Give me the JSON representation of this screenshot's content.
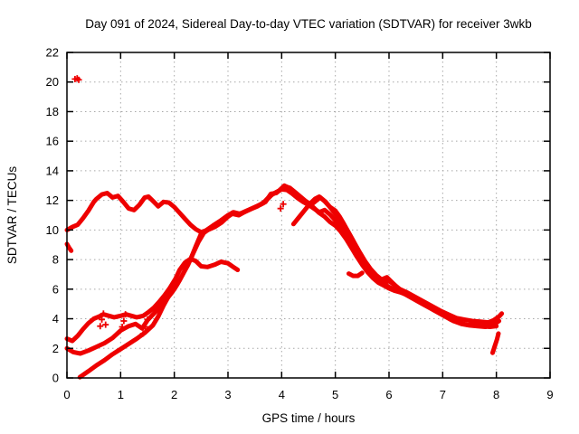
{
  "chart_data": {
    "type": "scatter",
    "title": "Day 091 of 2024, Sidereal Day-to-day VTEC variation (SDTVAR) for receiver 3wkb",
    "xlabel": "GPS time / hours",
    "ylabel": "SDTVAR / TECUs",
    "xlim": [
      0,
      9
    ],
    "ylim": [
      0,
      22
    ],
    "xticks": [
      0,
      1,
      2,
      3,
      4,
      5,
      6,
      7,
      8,
      9
    ],
    "yticks": [
      0,
      2,
      4,
      6,
      8,
      10,
      12,
      14,
      16,
      18,
      20,
      22
    ],
    "grid": true,
    "legend_position": "none",
    "marker": "plus",
    "color": "#ee0000",
    "grid_color": "#a8a8a8",
    "border_color": "#000000",
    "series": [
      {
        "name": "main-trace",
        "style": "line",
        "points": [
          [
            0,
            10.0
          ],
          [
            0.1,
            10.2
          ],
          [
            0.2,
            10.35
          ],
          [
            0.3,
            10.8
          ],
          [
            0.4,
            11.3
          ],
          [
            0.5,
            11.9
          ],
          [
            0.55,
            12.1
          ],
          [
            0.65,
            12.4
          ],
          [
            0.75,
            12.5
          ],
          [
            0.85,
            12.2
          ],
          [
            0.95,
            12.3
          ],
          [
            1.05,
            11.9
          ],
          [
            1.15,
            11.45
          ],
          [
            1.25,
            11.35
          ],
          [
            1.35,
            11.7
          ],
          [
            1.45,
            12.2
          ],
          [
            1.52,
            12.25
          ],
          [
            1.62,
            11.9
          ],
          [
            1.7,
            11.6
          ],
          [
            1.8,
            11.9
          ],
          [
            1.9,
            11.85
          ],
          [
            2.0,
            11.55
          ],
          [
            2.1,
            11.15
          ],
          [
            2.2,
            10.75
          ],
          [
            2.3,
            10.35
          ],
          [
            2.4,
            10.05
          ],
          [
            2.5,
            9.85
          ],
          [
            2.62,
            10.0
          ],
          [
            2.75,
            10.2
          ],
          [
            2.88,
            10.5
          ],
          [
            3.0,
            10.9
          ],
          [
            3.1,
            11.15
          ],
          [
            3.2,
            11.05
          ],
          [
            3.3,
            11.2
          ],
          [
            3.45,
            11.45
          ],
          [
            3.6,
            11.7
          ],
          [
            3.7,
            11.9
          ],
          [
            3.8,
            12.45
          ],
          [
            3.9,
            12.5
          ],
          [
            4.0,
            12.8
          ],
          [
            4.07,
            12.95
          ],
          [
            4.15,
            12.85
          ],
          [
            4.25,
            12.55
          ],
          [
            4.35,
            12.25
          ],
          [
            4.45,
            11.95
          ],
          [
            4.55,
            11.7
          ],
          [
            4.65,
            12.0
          ],
          [
            4.72,
            12.2
          ],
          [
            4.82,
            11.9
          ],
          [
            4.92,
            11.45
          ],
          [
            5.02,
            11.0
          ],
          [
            5.12,
            10.55
          ],
          [
            5.22,
            10.0
          ],
          [
            5.32,
            9.35
          ],
          [
            5.42,
            8.65
          ],
          [
            5.52,
            8.0
          ],
          [
            5.62,
            7.45
          ],
          [
            5.72,
            7.0
          ],
          [
            5.82,
            6.65
          ],
          [
            5.92,
            6.45
          ],
          [
            6.0,
            6.55
          ],
          [
            6.1,
            6.3
          ],
          [
            6.2,
            6.0
          ],
          [
            6.35,
            5.75
          ],
          [
            6.5,
            5.45
          ],
          [
            6.65,
            5.15
          ],
          [
            6.8,
            4.85
          ],
          [
            6.95,
            4.55
          ],
          [
            7.1,
            4.3
          ],
          [
            7.25,
            4.05
          ],
          [
            7.4,
            3.95
          ],
          [
            7.55,
            3.85
          ],
          [
            7.7,
            3.8
          ],
          [
            7.85,
            3.75
          ],
          [
            7.95,
            3.9
          ],
          [
            8.05,
            4.15
          ],
          [
            8.1,
            4.35
          ]
        ]
      },
      {
        "name": "second-trace",
        "style": "line",
        "points": [
          [
            0,
            2.0
          ],
          [
            0.12,
            1.75
          ],
          [
            0.25,
            1.65
          ],
          [
            0.4,
            1.85
          ],
          [
            0.55,
            2.1
          ],
          [
            0.7,
            2.35
          ],
          [
            0.85,
            2.7
          ],
          [
            1.0,
            3.2
          ],
          [
            1.15,
            3.5
          ],
          [
            1.28,
            3.65
          ],
          [
            1.4,
            3.35
          ],
          [
            1.5,
            3.9
          ],
          [
            1.62,
            4.35
          ],
          [
            1.73,
            4.8
          ],
          [
            1.85,
            5.3
          ],
          [
            1.95,
            5.75
          ],
          [
            2.05,
            6.3
          ],
          [
            2.15,
            6.95
          ],
          [
            2.25,
            7.6
          ],
          [
            2.35,
            8.4
          ],
          [
            2.45,
            9.2
          ],
          [
            2.55,
            9.8
          ],
          [
            2.68,
            10.15
          ],
          [
            2.82,
            10.45
          ],
          [
            2.95,
            10.8
          ],
          [
            3.08,
            11.1
          ],
          [
            3.2,
            11.0
          ],
          [
            3.35,
            11.3
          ],
          [
            3.5,
            11.55
          ],
          [
            3.65,
            11.8
          ],
          [
            3.78,
            12.3
          ],
          [
            3.9,
            12.55
          ],
          [
            4.0,
            12.75
          ],
          [
            4.1,
            12.7
          ],
          [
            4.2,
            12.45
          ],
          [
            4.3,
            12.15
          ],
          [
            4.4,
            11.9
          ],
          [
            4.5,
            11.7
          ],
          [
            4.6,
            11.45
          ],
          [
            4.7,
            11.2
          ],
          [
            4.8,
            11.35
          ],
          [
            4.9,
            11.05
          ],
          [
            5.0,
            10.65
          ],
          [
            5.1,
            10.2
          ],
          [
            5.2,
            9.6
          ],
          [
            5.3,
            8.95
          ],
          [
            5.4,
            8.3
          ],
          [
            5.5,
            7.75
          ],
          [
            5.6,
            7.25
          ],
          [
            5.7,
            6.85
          ],
          [
            5.8,
            6.55
          ],
          [
            5.9,
            6.35
          ],
          [
            6.0,
            6.15
          ],
          [
            6.15,
            5.9
          ],
          [
            6.3,
            5.65
          ],
          [
            6.45,
            5.35
          ],
          [
            6.6,
            5.05
          ],
          [
            6.75,
            4.75
          ],
          [
            6.9,
            4.45
          ],
          [
            7.05,
            4.15
          ],
          [
            7.2,
            3.85
          ],
          [
            7.35,
            3.65
          ],
          [
            7.5,
            3.55
          ],
          [
            7.65,
            3.5
          ],
          [
            7.8,
            3.45
          ],
          [
            7.95,
            3.6
          ],
          [
            8.05,
            3.85
          ]
        ]
      },
      {
        "name": "rising-trace",
        "style": "line",
        "points": [
          [
            0.24,
            0.05
          ],
          [
            0.4,
            0.45
          ],
          [
            0.55,
            0.85
          ],
          [
            0.7,
            1.2
          ],
          [
            0.85,
            1.6
          ],
          [
            1.0,
            1.95
          ],
          [
            1.15,
            2.3
          ],
          [
            1.3,
            2.65
          ],
          [
            1.45,
            3.05
          ],
          [
            1.6,
            3.55
          ],
          [
            1.7,
            4.15
          ],
          [
            1.8,
            4.9
          ],
          [
            1.9,
            5.55
          ],
          [
            2.0,
            6.0
          ],
          [
            2.1,
            6.6
          ],
          [
            2.2,
            7.3
          ],
          [
            2.3,
            8.0
          ],
          [
            2.4,
            8.9
          ],
          [
            2.5,
            9.75
          ],
          [
            2.6,
            10.0
          ],
          [
            2.72,
            10.3
          ],
          [
            2.85,
            10.6
          ],
          [
            3.0,
            11.0
          ],
          [
            3.1,
            11.2
          ],
          [
            3.22,
            11.1
          ],
          [
            3.38,
            11.35
          ],
          [
            3.55,
            11.6
          ],
          [
            3.7,
            11.95
          ],
          [
            3.82,
            12.4
          ],
          [
            3.95,
            12.65
          ],
          [
            4.05,
            13.0
          ],
          [
            4.15,
            12.8
          ],
          [
            4.28,
            12.4
          ],
          [
            4.4,
            12.05
          ],
          [
            4.5,
            11.8
          ],
          [
            4.6,
            11.5
          ],
          [
            4.7,
            11.15
          ],
          [
            4.8,
            10.9
          ],
          [
            4.9,
            10.55
          ],
          [
            5.0,
            10.3
          ],
          [
            5.1,
            9.9
          ],
          [
            5.2,
            9.4
          ],
          [
            5.3,
            8.8
          ],
          [
            5.4,
            8.2
          ],
          [
            5.5,
            7.65
          ],
          [
            5.6,
            7.15
          ],
          [
            5.7,
            6.75
          ],
          [
            5.8,
            6.45
          ],
          [
            5.9,
            6.25
          ],
          [
            6.0,
            6.05
          ],
          [
            6.1,
            5.9
          ],
          [
            6.25,
            5.75
          ],
          [
            6.4,
            5.5
          ],
          [
            6.55,
            5.2
          ],
          [
            6.7,
            4.9
          ],
          [
            6.85,
            4.55
          ],
          [
            7.0,
            4.25
          ],
          [
            7.15,
            3.95
          ],
          [
            7.3,
            3.75
          ],
          [
            7.45,
            3.6
          ],
          [
            7.6,
            3.55
          ],
          [
            7.75,
            3.5
          ],
          [
            7.88,
            3.45
          ],
          [
            8.0,
            3.5
          ]
        ]
      },
      {
        "name": "arch-trace",
        "style": "line",
        "points": [
          [
            0,
            2.65
          ],
          [
            0.1,
            2.5
          ],
          [
            0.2,
            2.85
          ],
          [
            0.3,
            3.3
          ],
          [
            0.4,
            3.7
          ],
          [
            0.5,
            4.0
          ],
          [
            0.6,
            4.15
          ],
          [
            0.68,
            4.3
          ],
          [
            0.78,
            4.2
          ],
          [
            0.88,
            4.1
          ],
          [
            1.0,
            4.2
          ],
          [
            1.1,
            4.3
          ],
          [
            1.2,
            4.2
          ],
          [
            1.3,
            4.1
          ],
          [
            1.42,
            4.2
          ],
          [
            1.52,
            4.45
          ],
          [
            1.62,
            4.75
          ],
          [
            1.72,
            5.15
          ],
          [
            1.82,
            5.6
          ],
          [
            1.92,
            6.1
          ],
          [
            2.02,
            6.7
          ],
          [
            2.1,
            7.3
          ],
          [
            2.2,
            7.8
          ],
          [
            2.3,
            8.05
          ],
          [
            2.4,
            7.9
          ],
          [
            2.5,
            7.55
          ],
          [
            2.62,
            7.5
          ],
          [
            2.75,
            7.65
          ],
          [
            2.87,
            7.85
          ],
          [
            3.0,
            7.75
          ],
          [
            3.1,
            7.5
          ],
          [
            3.18,
            7.3
          ]
        ]
      },
      {
        "name": "late-riser-trace",
        "style": "line",
        "points": [
          [
            4.22,
            10.4
          ],
          [
            4.32,
            10.85
          ],
          [
            4.42,
            11.3
          ],
          [
            4.52,
            11.75
          ],
          [
            4.62,
            12.1
          ],
          [
            4.7,
            12.25
          ],
          [
            4.8,
            11.95
          ],
          [
            4.9,
            11.55
          ],
          [
            5.0,
            11.3
          ],
          [
            5.08,
            10.9
          ],
          [
            5.16,
            10.4
          ],
          [
            5.26,
            9.75
          ],
          [
            5.36,
            9.1
          ],
          [
            5.46,
            8.45
          ],
          [
            5.56,
            7.85
          ],
          [
            5.66,
            7.35
          ],
          [
            5.76,
            6.95
          ],
          [
            5.86,
            6.65
          ],
          [
            5.96,
            6.8
          ],
          [
            6.06,
            6.45
          ],
          [
            6.16,
            6.1
          ]
        ]
      },
      {
        "name": "short-segment-high",
        "style": "line",
        "points": [
          [
            0,
            9.05
          ],
          [
            0.04,
            8.8
          ],
          [
            0.08,
            8.6
          ]
        ]
      },
      {
        "name": "short-segment-mid",
        "style": "line",
        "points": [
          [
            5.25,
            7.05
          ],
          [
            5.33,
            6.9
          ],
          [
            5.42,
            6.9
          ],
          [
            5.5,
            7.1
          ]
        ]
      },
      {
        "name": "end-tail-segment",
        "style": "line",
        "points": [
          [
            7.93,
            1.7
          ],
          [
            7.97,
            2.15
          ],
          [
            8.01,
            2.6
          ],
          [
            8.04,
            3.0
          ]
        ]
      },
      {
        "name": "outlier-cluster",
        "style": "points",
        "points": [
          [
            0.15,
            20.2
          ],
          [
            0.19,
            20.25
          ],
          [
            0.22,
            20.15
          ]
        ]
      },
      {
        "name": "jitter-points",
        "style": "points",
        "points": [
          [
            0.62,
            3.5
          ],
          [
            0.65,
            3.95
          ],
          [
            0.68,
            4.35
          ],
          [
            0.72,
            3.6
          ],
          [
            1.03,
            3.45
          ],
          [
            1.06,
            3.85
          ],
          [
            1.09,
            4.3
          ],
          [
            1.42,
            3.0
          ],
          [
            1.46,
            3.45
          ],
          [
            1.5,
            3.95
          ],
          [
            3.98,
            11.45
          ],
          [
            4.03,
            11.75
          ]
        ]
      }
    ]
  }
}
